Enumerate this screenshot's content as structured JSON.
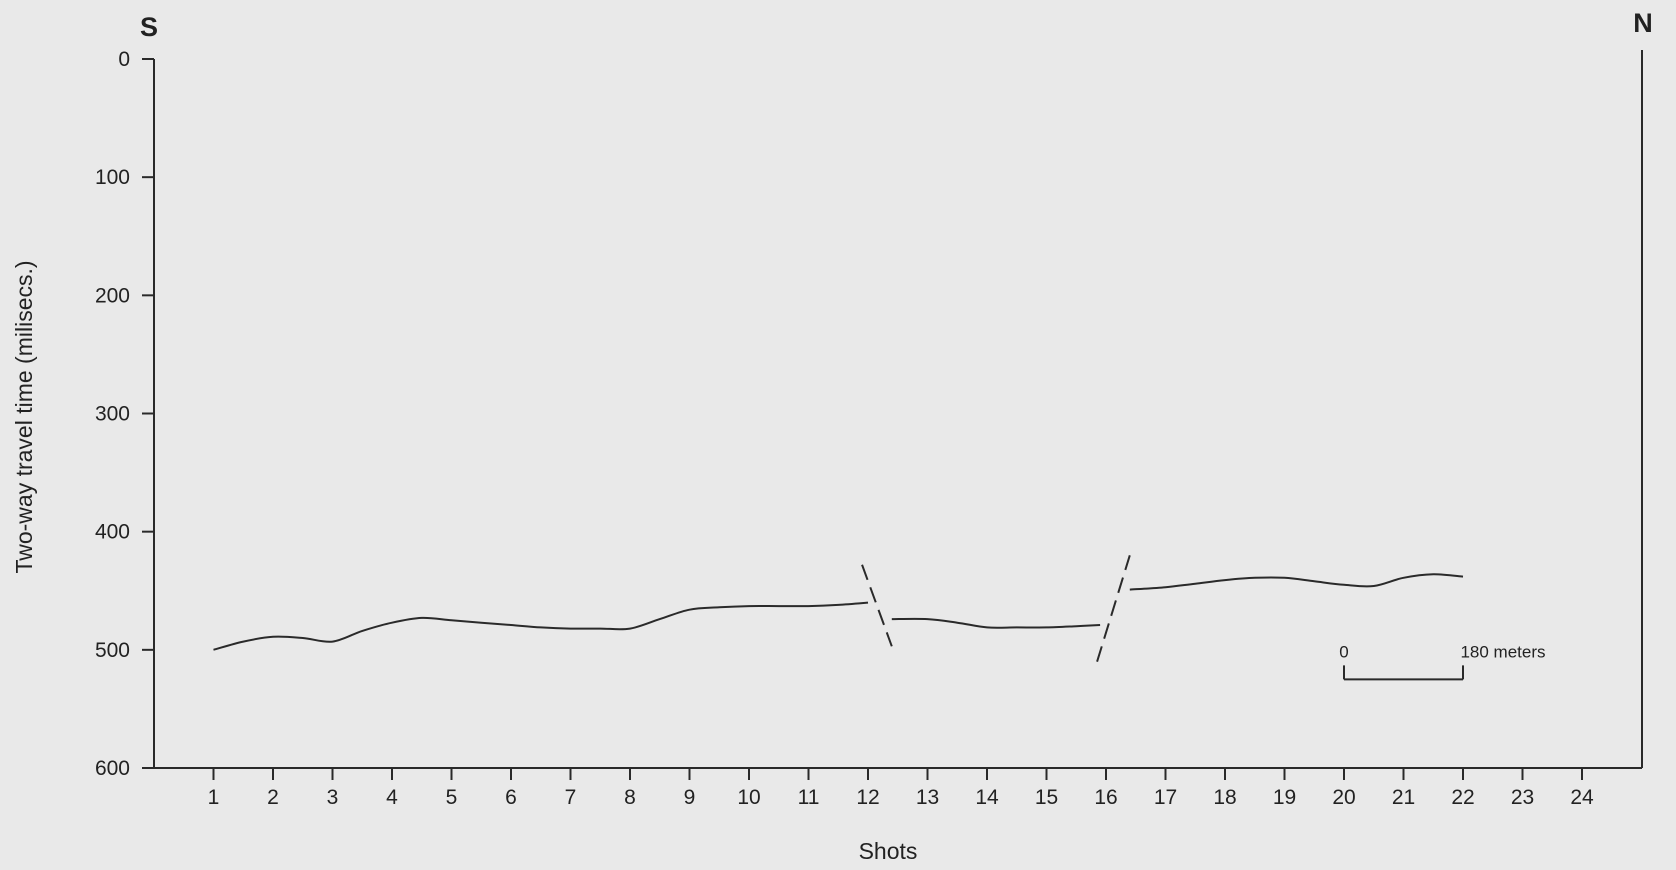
{
  "chart_data": {
    "type": "line",
    "title": "",
    "xlabel": "Shots",
    "ylabel": "Two-way travel time (milisecs.)",
    "y_inverted": true,
    "ylim": [
      0,
      600
    ],
    "xlim": [
      0,
      24.6
    ],
    "y_ticks": [
      0,
      100,
      200,
      300,
      400,
      500,
      600
    ],
    "x_ticks": [
      1,
      2,
      3,
      4,
      5,
      6,
      7,
      8,
      9,
      10,
      11,
      12,
      13,
      14,
      15,
      16,
      17,
      18,
      19,
      20,
      21,
      22,
      23,
      24
    ],
    "grid": false,
    "direction_labels": {
      "left": "S",
      "right": "N"
    },
    "series": [
      {
        "segment": 1,
        "x": [
          1,
          1.5,
          2,
          2.5,
          3,
          3.5,
          4,
          4.5,
          5,
          5.5,
          6,
          6.5,
          7,
          7.5,
          8,
          8.5,
          9,
          9.5,
          10,
          10.5,
          11,
          11.5,
          12
        ],
        "y": [
          500,
          493,
          489,
          490,
          493,
          484,
          477,
          473,
          475,
          477,
          479,
          481,
          482,
          482,
          482,
          474,
          466,
          464,
          463,
          463,
          463,
          462,
          460
        ]
      },
      {
        "segment": 2,
        "x": [
          12.4,
          13,
          13.5,
          14,
          14.5,
          15,
          15.5,
          15.9
        ],
        "y": [
          474,
          474,
          477,
          481,
          481,
          481,
          480,
          479
        ]
      },
      {
        "segment": 3,
        "x": [
          16.4,
          17,
          17.5,
          18,
          18.5,
          19,
          19.5,
          20,
          20.5,
          21,
          21.5,
          22
        ],
        "y": [
          449,
          447,
          444,
          441,
          439,
          439,
          442,
          445,
          446,
          439,
          436,
          438
        ]
      }
    ],
    "dashed_breaks": [
      {
        "x": [
          11.9,
          12.4
        ],
        "y": [
          428,
          497
        ]
      },
      {
        "x": [
          15.85,
          16.4
        ],
        "y": [
          510,
          420
        ]
      }
    ],
    "scale_bar": {
      "left_label": "0",
      "right_label": "180 meters",
      "x": [
        20,
        22
      ],
      "y": 525
    }
  }
}
